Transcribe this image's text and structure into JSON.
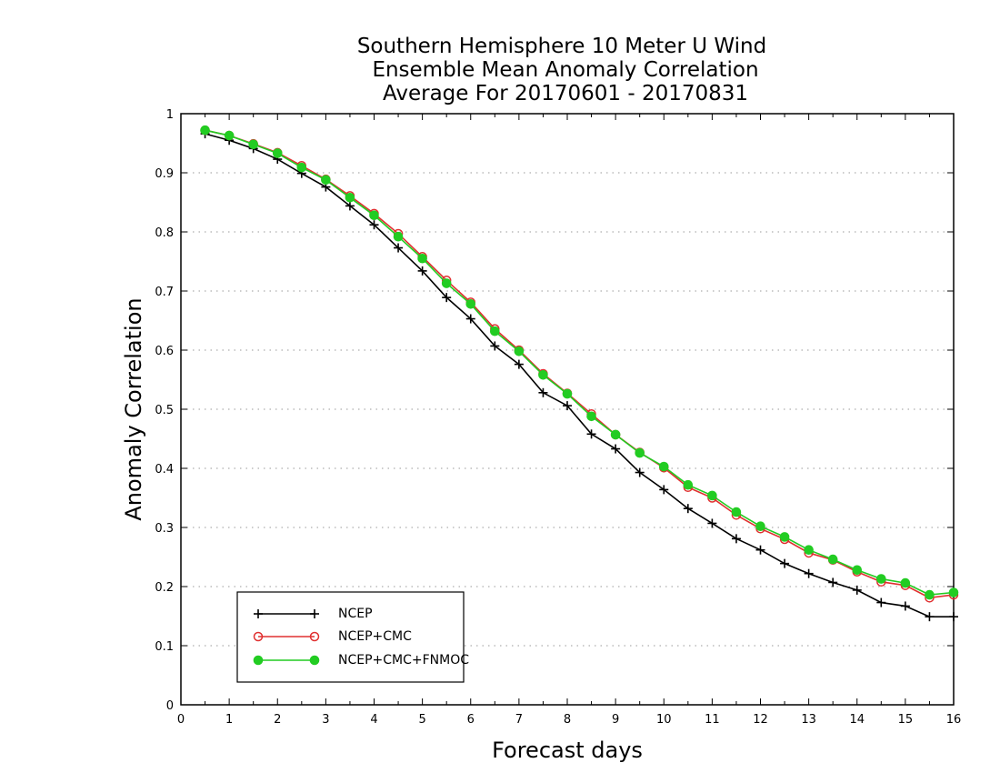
{
  "chart_data": {
    "type": "line",
    "title_lines": [
      "Southern Hemisphere 10 Meter U Wind",
      "Ensemble Mean Anomaly Correlation",
      "Average For 20170601 - 20170831"
    ],
    "xlabel": "Forecast days",
    "ylabel": "Anomaly Correlation",
    "xlim": [
      0,
      16
    ],
    "ylim": [
      0,
      1
    ],
    "xticks": [
      0,
      1,
      2,
      3,
      4,
      5,
      6,
      7,
      8,
      9,
      10,
      11,
      12,
      13,
      14,
      15,
      16
    ],
    "xtick_labels": [
      "0",
      "1",
      "2",
      "3",
      "4",
      "5",
      "6",
      "7",
      "8",
      "9",
      "10",
      "11",
      "12",
      "13",
      "14",
      "15",
      "16"
    ],
    "yticks": [
      0,
      0.1,
      0.2,
      0.3,
      0.4,
      0.5,
      0.6,
      0.7,
      0.8,
      0.9,
      1
    ],
    "ytick_labels": [
      "0",
      "0.1",
      "0.2",
      "0.3",
      "0.4",
      "0.5",
      "0.6",
      "0.7",
      "0.8",
      "0.9",
      "1"
    ],
    "grid": "horizontal-dotted",
    "legend_position": "bottom-left",
    "x": [
      0.5,
      1,
      1.5,
      2,
      2.5,
      3,
      3.5,
      4,
      4.5,
      5,
      5.5,
      6,
      6.5,
      7,
      7.5,
      8,
      8.5,
      9,
      9.5,
      10,
      10.5,
      11,
      11.5,
      12,
      12.5,
      13,
      13.5,
      14,
      14.5,
      15,
      15.5,
      16
    ],
    "series": [
      {
        "name": "NCEP",
        "color": "#000000",
        "marker": "plus",
        "values": [
          0.966,
          0.955,
          0.941,
          0.923,
          0.899,
          0.876,
          0.844,
          0.812,
          0.773,
          0.734,
          0.689,
          0.653,
          0.607,
          0.576,
          0.528,
          0.506,
          0.458,
          0.433,
          0.393,
          0.364,
          0.332,
          0.307,
          0.281,
          0.262,
          0.239,
          0.222,
          0.207,
          0.194,
          0.173,
          0.167,
          0.149,
          0.149
        ]
      },
      {
        "name": "NCEP+CMC",
        "color": "#e03030",
        "marker": "open-circle",
        "values": [
          0.972,
          0.963,
          0.949,
          0.934,
          0.912,
          0.889,
          0.861,
          0.831,
          0.797,
          0.758,
          0.718,
          0.681,
          0.636,
          0.6,
          0.56,
          0.527,
          0.492,
          0.457,
          0.427,
          0.401,
          0.368,
          0.35,
          0.321,
          0.298,
          0.28,
          0.257,
          0.245,
          0.225,
          0.208,
          0.202,
          0.181,
          0.186
        ]
      },
      {
        "name": "NCEP+CMC+FNMOC",
        "color": "#22cc22",
        "marker": "filled-circle",
        "values": [
          0.972,
          0.963,
          0.948,
          0.933,
          0.909,
          0.888,
          0.858,
          0.828,
          0.792,
          0.755,
          0.713,
          0.678,
          0.632,
          0.598,
          0.558,
          0.526,
          0.488,
          0.457,
          0.426,
          0.403,
          0.372,
          0.354,
          0.326,
          0.302,
          0.284,
          0.262,
          0.246,
          0.228,
          0.213,
          0.206,
          0.186,
          0.19
        ]
      }
    ]
  }
}
